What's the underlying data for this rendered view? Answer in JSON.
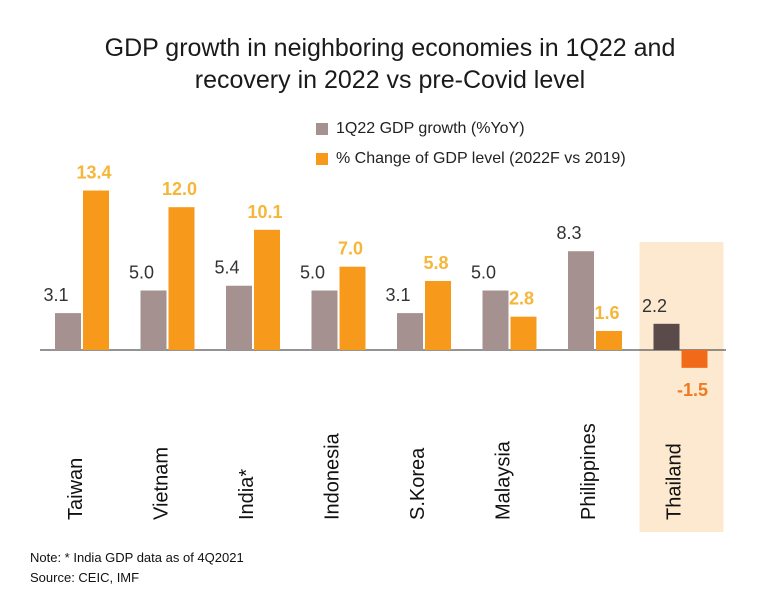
{
  "chart_data": {
    "type": "bar",
    "title_lines": [
      "GDP growth in neighboring economies in 1Q22 and",
      "recovery in 2022 vs pre-Covid level"
    ],
    "categories": [
      "Taiwan",
      "Vietnam",
      "India*",
      "Indonesia",
      "S.Korea",
      "Malaysia",
      "Philippines",
      "Thailand"
    ],
    "series": [
      {
        "name": "1Q22 GDP growth (%YoY)",
        "values": [
          3.1,
          5.0,
          5.4,
          5.0,
          3.1,
          5.0,
          8.3,
          2.2
        ],
        "labels": [
          "3.1",
          "5.0",
          "5.4",
          "5.0",
          "3.1",
          "5.0",
          "8.3",
          "2.2"
        ]
      },
      {
        "name": "% Change of GDP level (2022F vs 2019)",
        "values": [
          13.4,
          12.0,
          10.1,
          7.0,
          5.8,
          2.8,
          1.6,
          -1.5
        ],
        "labels": [
          "13.4",
          "12.0",
          "10.1",
          "7.0",
          "5.8",
          "2.8",
          "1.6",
          "-1.5"
        ]
      }
    ],
    "highlight_category": "Thailand",
    "xlabel": "",
    "ylabel": "",
    "ylim": [
      -3,
      16
    ]
  },
  "colors": {
    "series1": "#a69191",
    "series2": "#f79a1b",
    "series1_highlight": "#5a4a4a",
    "series2_highlight": "#f06a1a",
    "highlight_bg": "#fce9cf",
    "label_default": "#333333",
    "label_series2": "#f5b63a",
    "label_highlight_neg": "#f07a20"
  },
  "notes": {
    "note": "Note:  * India GDP data as of 4Q2021",
    "source": "Source: CEIC, IMF"
  }
}
